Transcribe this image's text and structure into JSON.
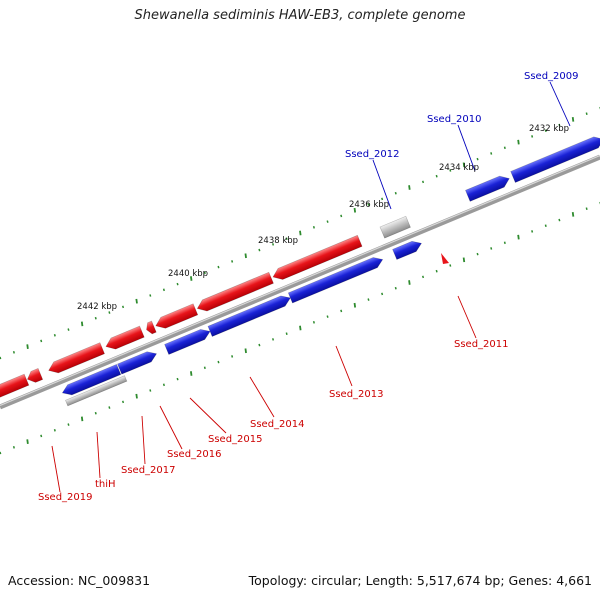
{
  "title": "Shewanella sediminis HAW-EB3, complete genome",
  "footer": {
    "accession": "Accession: NC_009831",
    "summary": "Topology: circular; Length: 5,517,674 bp; Genes: 4,661"
  },
  "colors": {
    "forward": "#e8141a",
    "reverse": "#1a22d6",
    "other": "#bdbdbd",
    "backbone": "#808080",
    "tick": "#2e8b2e",
    "forward_label": "#cc0000",
    "reverse_label": "#0000bb"
  },
  "scale_labels": [
    "2432 kbp",
    "2434 kbp",
    "2436 kbp",
    "2438 kbp",
    "2440 kbp",
    "2442 kbp"
  ],
  "genes": [
    {
      "name": "Ssed_2009",
      "strand": "reverse"
    },
    {
      "name": "Ssed_2010",
      "strand": "reverse"
    },
    {
      "name": "Ssed_2012",
      "strand": "reverse"
    },
    {
      "name": "Ssed_2011",
      "strand": "forward"
    },
    {
      "name": "Ssed_2013",
      "strand": "forward"
    },
    {
      "name": "Ssed_2014",
      "strand": "forward"
    },
    {
      "name": "Ssed_2015",
      "strand": "forward"
    },
    {
      "name": "Ssed_2016",
      "strand": "forward"
    },
    {
      "name": "Ssed_2017",
      "strand": "forward"
    },
    {
      "name": "thiH",
      "strand": "forward"
    },
    {
      "name": "Ssed_2019",
      "strand": "forward"
    }
  ]
}
